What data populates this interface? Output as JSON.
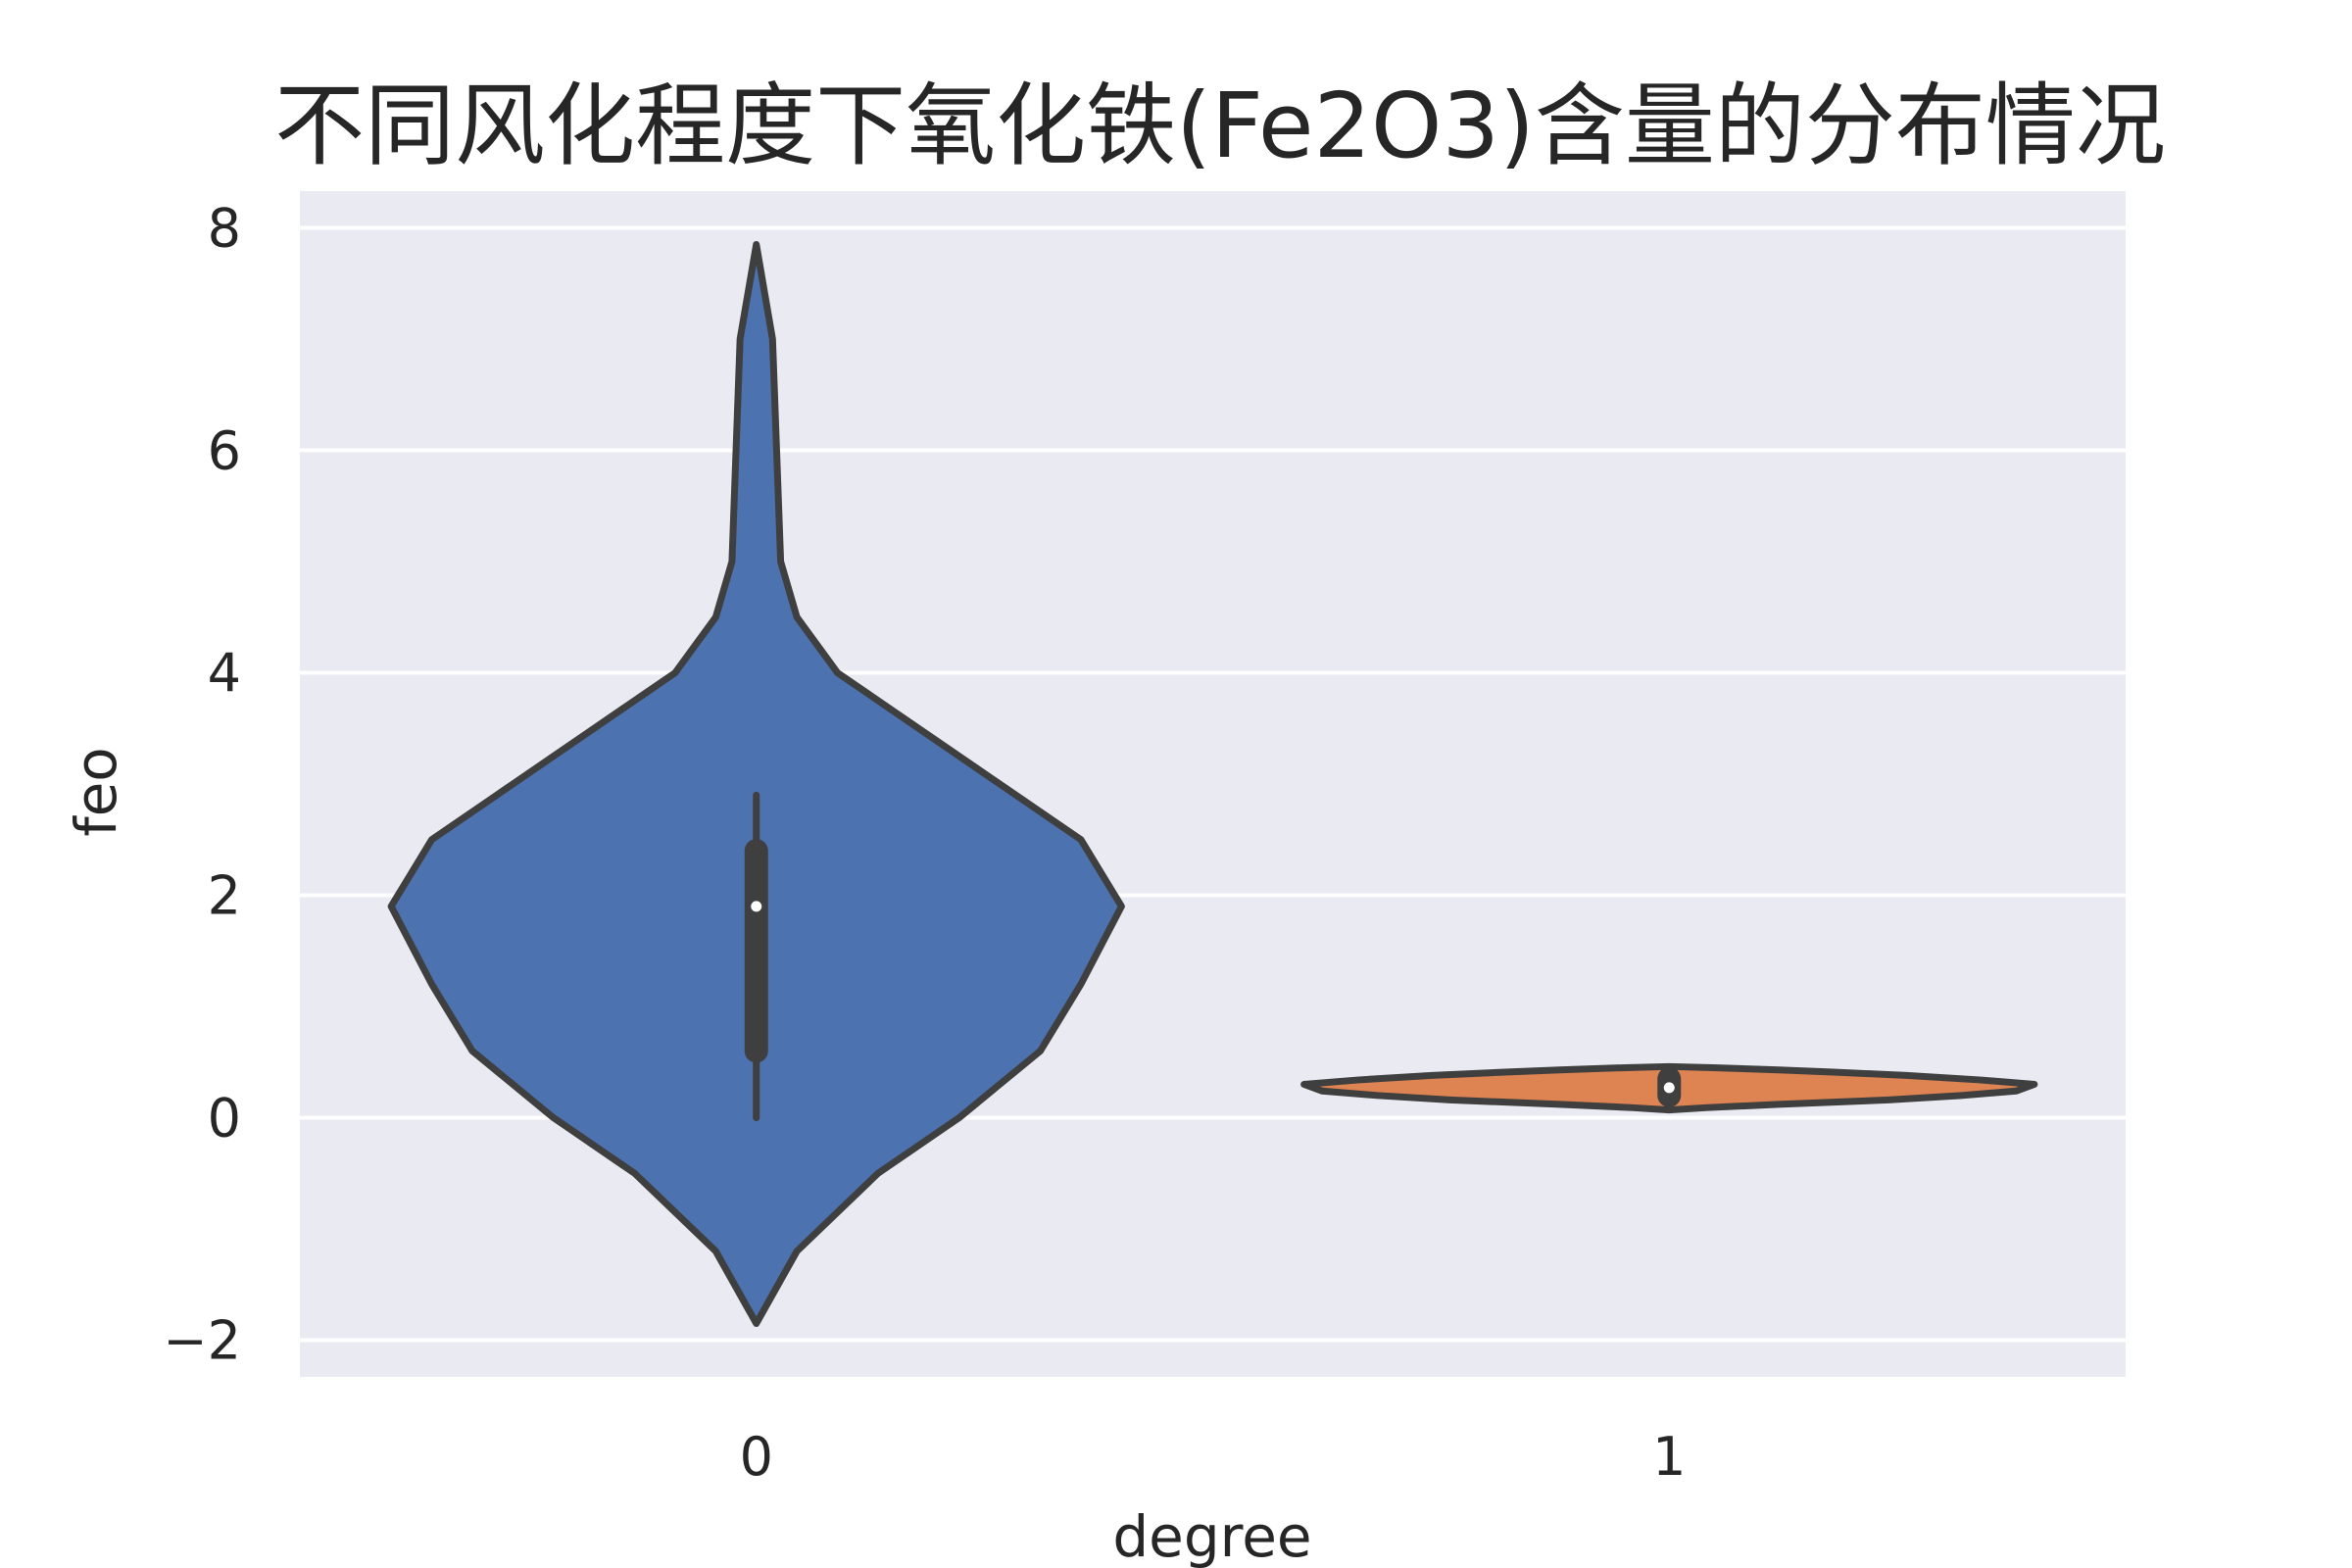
{
  "chart_data": {
    "type": "violin",
    "title": "不同风化程度下氧化铁(Fe2O3)含量的分布情况",
    "xlabel": "degree",
    "ylabel": "feo",
    "categories": [
      "0",
      "1"
    ],
    "y_ticks": [
      "−2",
      "0",
      "2",
      "4",
      "6",
      "8"
    ],
    "y_tick_values": [
      -2,
      0,
      2,
      4,
      6,
      8
    ],
    "ylim": [
      -2.33,
      8.33
    ],
    "grid": true,
    "violins": [
      {
        "category": "0",
        "color": "#4C72B0",
        "density_profile": [
          [
            -1.85,
            0.0
          ],
          [
            -1.2,
            0.01
          ],
          [
            -0.5,
            0.03
          ],
          [
            0.0,
            0.05
          ],
          [
            0.6,
            0.07
          ],
          [
            1.2,
            0.08
          ],
          [
            1.9,
            0.09
          ],
          [
            2.5,
            0.08
          ],
          [
            3.0,
            0.06
          ],
          [
            3.5,
            0.04
          ],
          [
            4.0,
            0.02
          ],
          [
            4.5,
            0.01
          ],
          [
            5.0,
            0.006
          ],
          [
            6.0,
            0.005
          ],
          [
            7.0,
            0.004
          ],
          [
            7.85,
            0.0
          ]
        ],
        "box": {
          "q1": 0.6,
          "median": 1.9,
          "q3": 2.4,
          "whisker_low": 0.0,
          "whisker_high": 2.9
        }
      },
      {
        "category": "1",
        "color": "#DD8452",
        "density_profile": [
          [
            0.07,
            0.0
          ],
          [
            0.09,
            0.1
          ],
          [
            0.12,
            0.3
          ],
          [
            0.16,
            0.6
          ],
          [
            0.2,
            0.8
          ],
          [
            0.24,
            0.95
          ],
          [
            0.3,
            1.0
          ],
          [
            0.34,
            0.85
          ],
          [
            0.38,
            0.65
          ],
          [
            0.41,
            0.45
          ],
          [
            0.43,
            0.3
          ],
          [
            0.45,
            0.12
          ],
          [
            0.46,
            0.0
          ]
        ],
        "box": {
          "q1": 0.2,
          "median": 0.27,
          "q3": 0.35,
          "whisker_low": 0.2,
          "whisker_high": 0.35
        }
      }
    ],
    "colors": {
      "background": "#EAEAF2",
      "grid": "#FFFFFF",
      "outline": "#3F3F3F",
      "text": "#262626",
      "median_dot": "#FFFFFF"
    }
  }
}
